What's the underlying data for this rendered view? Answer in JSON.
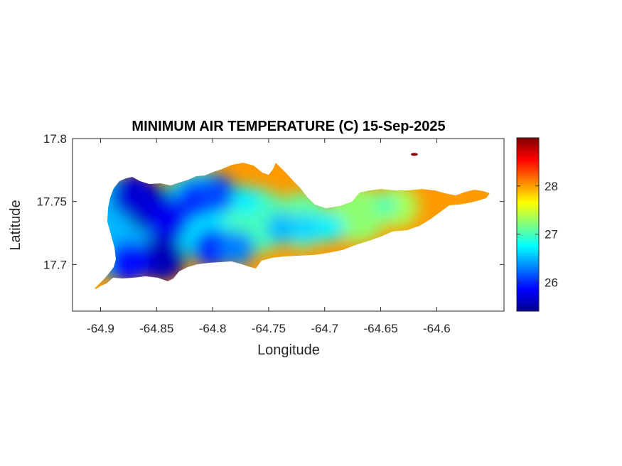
{
  "chart_data": {
    "type": "heatmap",
    "title": "MINIMUM AIR TEMPERATURE (C) 15-Sep-2025",
    "xlabel": "Longitude",
    "ylabel": "Latitude",
    "xlim": [
      -64.925,
      -64.54
    ],
    "ylim": [
      17.663,
      17.8
    ],
    "xticks": [
      -64.9,
      -64.85,
      -64.8,
      -64.75,
      -64.7,
      -64.65,
      -64.6
    ],
    "xtick_labels": [
      "-64.9",
      "-64.85",
      "-64.8",
      "-64.75",
      "-64.7",
      "-64.65",
      "-64.6"
    ],
    "yticks": [
      17.7,
      17.75,
      17.8
    ],
    "ytick_labels": [
      "17.7",
      "17.75",
      "17.8"
    ],
    "colorbar": {
      "range": [
        25.4,
        29.0
      ],
      "ticks": [
        26,
        27,
        28
      ],
      "tick_labels": [
        "26",
        "27",
        "28"
      ],
      "colormap": "jet"
    },
    "cold_spots": [
      {
        "lon": -64.855,
        "lat": 17.745,
        "value": 25.5
      },
      {
        "lon": -64.84,
        "lat": 17.735,
        "value": 25.8
      },
      {
        "lon": -64.87,
        "lat": 17.755,
        "value": 25.7
      },
      {
        "lon": -64.845,
        "lat": 17.705,
        "value": 25.6
      },
      {
        "lon": -64.875,
        "lat": 17.702,
        "value": 25.9
      },
      {
        "lon": -64.815,
        "lat": 17.752,
        "value": 26.0
      },
      {
        "lon": -64.796,
        "lat": 17.756,
        "value": 26.1
      },
      {
        "lon": -64.8,
        "lat": 17.713,
        "value": 26.0
      },
      {
        "lon": -64.778,
        "lat": 17.713,
        "value": 26.3
      },
      {
        "lon": -64.738,
        "lat": 17.729,
        "value": 26.5
      },
      {
        "lon": -64.716,
        "lat": 17.729,
        "value": 26.6
      },
      {
        "lon": -64.695,
        "lat": 17.729,
        "value": 26.7
      },
      {
        "lon": -64.77,
        "lat": 17.751,
        "value": 26.7
      },
      {
        "lon": -64.645,
        "lat": 17.747,
        "value": 27.0
      }
    ],
    "regions": [
      {
        "lon": -64.62,
        "lat": 17.788,
        "value": 29.0
      }
    ]
  }
}
